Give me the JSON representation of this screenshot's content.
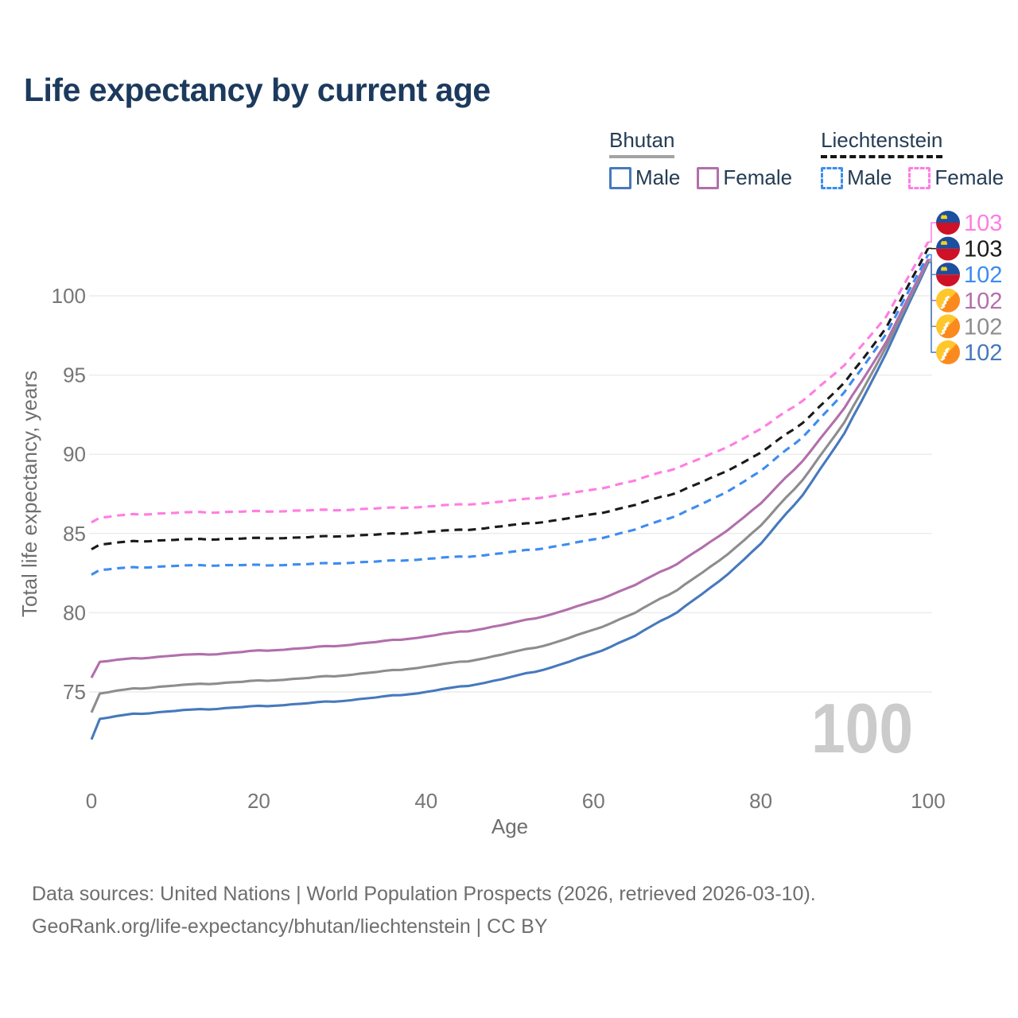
{
  "title": "Life expectancy by current age",
  "legend": {
    "groups": [
      {
        "name": "Bhutan",
        "line_style": "solid",
        "underline_color": "#a3a3a3",
        "items": [
          {
            "label": "Male",
            "color": "#4679bd",
            "dashed": false
          },
          {
            "label": "Female",
            "color": "#b26fab",
            "dashed": false
          }
        ]
      },
      {
        "name": "Liechtenstein",
        "line_style": "dashed",
        "underline_color": "#151515",
        "items": [
          {
            "label": "Male",
            "color": "#3d8cf0",
            "dashed": true
          },
          {
            "label": "Female",
            "color": "#ff7de2",
            "dashed": true
          }
        ]
      }
    ]
  },
  "watermark": "100",
  "footer": {
    "line1": "Data sources: United Nations | World Population Prospects (2026, retrieved 2026-03-10).",
    "line2": "GeoRank.org/life-expectancy/bhutan/liechtenstein | CC BY"
  },
  "chart_data": {
    "type": "line",
    "title": "Life expectancy by current age",
    "xlabel": "Age",
    "ylabel": "Total life expectancy, years",
    "x_ticks": [
      0,
      20,
      40,
      60,
      80,
      100
    ],
    "y_ticks": [
      75,
      80,
      85,
      90,
      95,
      100
    ],
    "xlim": [
      0,
      100
    ],
    "ylim": [
      72,
      104
    ],
    "grid": "horizontal",
    "legend_position": "top-right",
    "x": [
      0,
      1,
      5,
      10,
      15,
      20,
      25,
      30,
      35,
      40,
      45,
      50,
      55,
      60,
      65,
      70,
      75,
      80,
      85,
      90,
      95,
      100
    ],
    "series": [
      {
        "name": "Liechtenstein Female",
        "country": "Liechtenstein",
        "sex": "Female",
        "color": "#ff7de2",
        "dashed": true,
        "end_label": "103",
        "flag": "liechtenstein",
        "values": [
          85.7,
          86.0,
          86.2,
          86.3,
          86.35,
          86.4,
          86.45,
          86.5,
          86.6,
          86.7,
          86.85,
          87.05,
          87.35,
          87.75,
          88.35,
          89.15,
          90.2,
          91.6,
          93.4,
          95.6,
          98.7,
          103.4
        ]
      },
      {
        "name": "Liechtenstein",
        "country": "Liechtenstein",
        "sex": "All",
        "color": "#1a1a1a",
        "dashed": true,
        "end_label": "103",
        "flag": "liechtenstein",
        "values": [
          84.0,
          84.3,
          84.5,
          84.6,
          84.65,
          84.7,
          84.75,
          84.85,
          84.95,
          85.1,
          85.25,
          85.5,
          85.8,
          86.2,
          86.8,
          87.6,
          88.7,
          90.1,
          92.0,
          94.5,
          98.0,
          103.0
        ]
      },
      {
        "name": "Liechtenstein Male",
        "country": "Liechtenstein",
        "sex": "Male",
        "color": "#3d8cf0",
        "dashed": true,
        "end_label": "102",
        "flag": "liechtenstein",
        "values": [
          82.4,
          82.7,
          82.85,
          82.95,
          83.0,
          83.0,
          83.05,
          83.15,
          83.25,
          83.4,
          83.55,
          83.8,
          84.15,
          84.6,
          85.25,
          86.15,
          87.35,
          88.95,
          91.1,
          93.9,
          97.6,
          102.6
        ]
      },
      {
        "name": "Bhutan Female",
        "country": "Bhutan",
        "sex": "Female",
        "color": "#b26fab",
        "dashed": false,
        "end_label": "102",
        "flag": "bhutan",
        "values": [
          75.9,
          76.9,
          77.1,
          77.3,
          77.4,
          77.6,
          77.75,
          77.95,
          78.2,
          78.5,
          78.85,
          79.3,
          79.9,
          80.7,
          81.75,
          83.1,
          84.8,
          86.9,
          89.6,
          92.9,
          97.1,
          102.3
        ]
      },
      {
        "name": "Bhutan",
        "country": "Bhutan",
        "sex": "All",
        "color": "#8d8d8d",
        "dashed": false,
        "end_label": "102",
        "flag": "bhutan",
        "values": [
          73.7,
          74.9,
          75.2,
          75.4,
          75.55,
          75.7,
          75.85,
          76.05,
          76.3,
          76.6,
          76.95,
          77.45,
          78.05,
          78.9,
          80.0,
          81.45,
          83.25,
          85.5,
          88.4,
          92.0,
          96.8,
          102.2
        ]
      },
      {
        "name": "Bhutan Male",
        "country": "Bhutan",
        "sex": "Male",
        "color": "#4679bd",
        "dashed": false,
        "end_label": "102",
        "flag": "bhutan",
        "values": [
          72.0,
          73.3,
          73.6,
          73.8,
          73.95,
          74.1,
          74.25,
          74.45,
          74.7,
          75.0,
          75.4,
          75.9,
          76.55,
          77.4,
          78.55,
          80.05,
          81.95,
          84.35,
          87.45,
          91.3,
          96.4,
          102.1
        ]
      }
    ],
    "flag_colors": {
      "liechtenstein": {
        "top": "#1d4f9f",
        "bottom": "#ce1126",
        "crown": "#ffd21c"
      },
      "bhutan": {
        "upper": "#ffc72c",
        "lower": "#fb8a1e",
        "dragon": "#ffffff"
      }
    }
  }
}
